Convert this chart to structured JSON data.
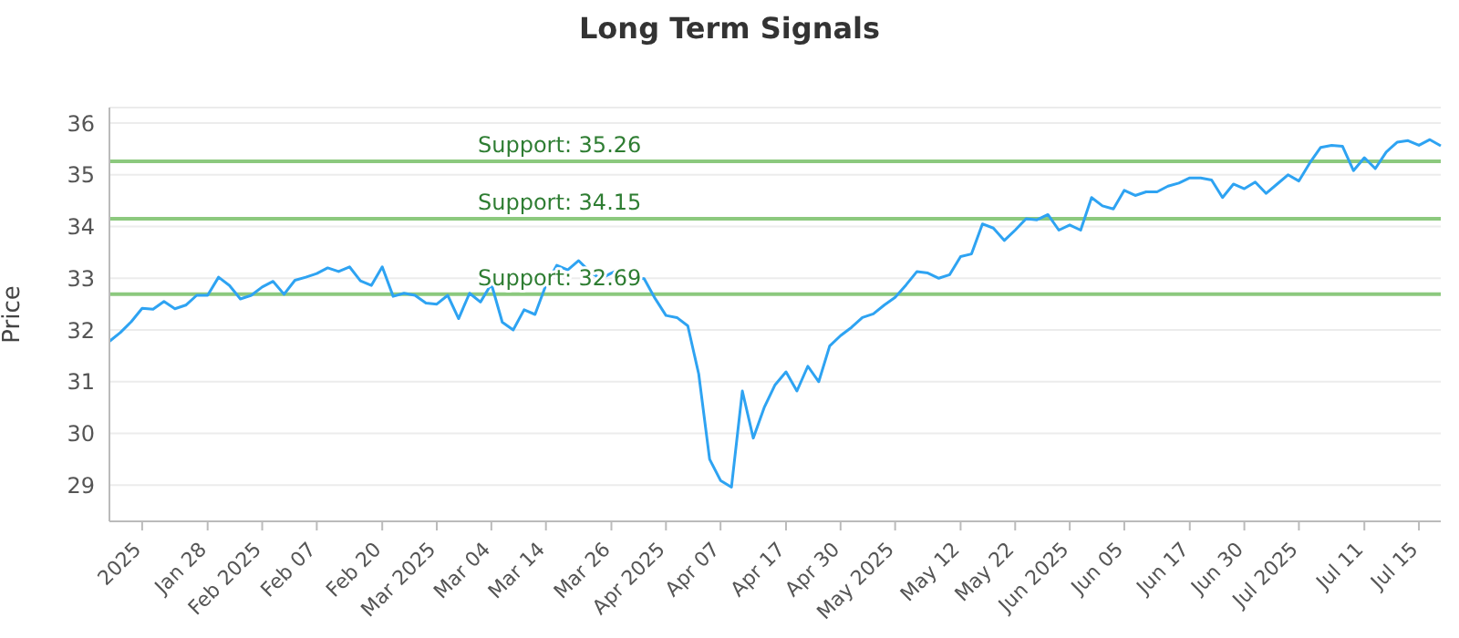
{
  "chart_data": {
    "type": "line",
    "title": "Long Term Signals",
    "ylabel": "Price",
    "categories": [
      null,
      null,
      null,
      "2025",
      null,
      null,
      null,
      null,
      null,
      "Jan 28",
      null,
      null,
      null,
      null,
      "Feb 2025",
      null,
      null,
      null,
      null,
      "Feb 07",
      null,
      null,
      null,
      null,
      null,
      "Feb 20",
      null,
      null,
      null,
      null,
      "Mar 2025",
      null,
      null,
      null,
      null,
      "Mar 04",
      null,
      null,
      null,
      null,
      "Mar 14",
      null,
      null,
      null,
      null,
      null,
      "Mar 26",
      null,
      null,
      null,
      null,
      "Apr 2025",
      null,
      null,
      null,
      null,
      "Apr 07",
      null,
      null,
      null,
      null,
      null,
      "Apr 17",
      null,
      null,
      null,
      null,
      "Apr 30",
      null,
      null,
      null,
      null,
      "May 2025",
      null,
      null,
      null,
      null,
      null,
      "May 12",
      null,
      null,
      null,
      null,
      "May 22",
      null,
      null,
      null,
      null,
      "Jun 2025",
      null,
      null,
      null,
      null,
      "Jun 05",
      null,
      null,
      null,
      null,
      null,
      "Jun 17",
      null,
      null,
      null,
      null,
      "Jun 30",
      null,
      null,
      null,
      null,
      "Jul 2025",
      null,
      null,
      null,
      null,
      null,
      "Jul 11",
      null,
      null,
      null,
      null,
      "Jul 15",
      null,
      null
    ],
    "series": [
      {
        "color": "#2ea3f2",
        "values": [
          31.78,
          31.95,
          32.16,
          32.42,
          32.4,
          32.55,
          32.41,
          32.48,
          32.67,
          32.67,
          33.02,
          32.86,
          32.6,
          32.67,
          32.83,
          32.94,
          32.69,
          32.96,
          33.02,
          33.09,
          33.2,
          33.13,
          33.22,
          32.95,
          32.86,
          33.22,
          32.65,
          32.71,
          32.67,
          32.52,
          32.5,
          32.67,
          32.22,
          32.71,
          32.54,
          32.89,
          32.15,
          32.0,
          32.39,
          32.3,
          32.87,
          33.25,
          33.16,
          33.34,
          33.13,
          32.99,
          33.1,
          33.19,
          33.01,
          32.99,
          32.61,
          32.28,
          32.24,
          32.08,
          31.15,
          29.5,
          29.09,
          28.96,
          30.82,
          29.91,
          30.5,
          30.94,
          31.19,
          30.82,
          31.3,
          31.0,
          31.69,
          31.89,
          32.05,
          32.24,
          32.31,
          32.48,
          32.63,
          32.87,
          33.13,
          33.1,
          33.0,
          33.07,
          33.42,
          33.47,
          34.05,
          33.97,
          33.73,
          33.93,
          34.15,
          34.13,
          34.23,
          33.93,
          34.03,
          33.93,
          34.56,
          34.4,
          34.34,
          34.7,
          34.6,
          34.67,
          34.67,
          34.78,
          34.84,
          34.94,
          34.94,
          34.9,
          34.56,
          34.82,
          34.73,
          34.86,
          34.64,
          34.82,
          35.0,
          34.88,
          35.23,
          35.53,
          35.57,
          35.55,
          35.08,
          35.33,
          35.12,
          35.44,
          35.63,
          35.66,
          35.57,
          35.68,
          35.56
        ]
      }
    ],
    "ylim": [
      28.3,
      36.3
    ],
    "yticks": [
      29,
      30,
      31,
      32,
      33,
      34,
      35,
      36
    ],
    "grid": "y",
    "marker": "none",
    "line_style": "solid",
    "legend": false,
    "ref_lines": [
      {
        "axis": "y",
        "value": 35.26,
        "label": "Support: 35.26",
        "color": "#8cc97e"
      },
      {
        "axis": "y",
        "value": 34.15,
        "label": "Support: 34.15",
        "color": "#8cc97e"
      },
      {
        "axis": "y",
        "value": 32.69,
        "label": "Support: 32.69",
        "color": "#8cc97e"
      }
    ]
  }
}
